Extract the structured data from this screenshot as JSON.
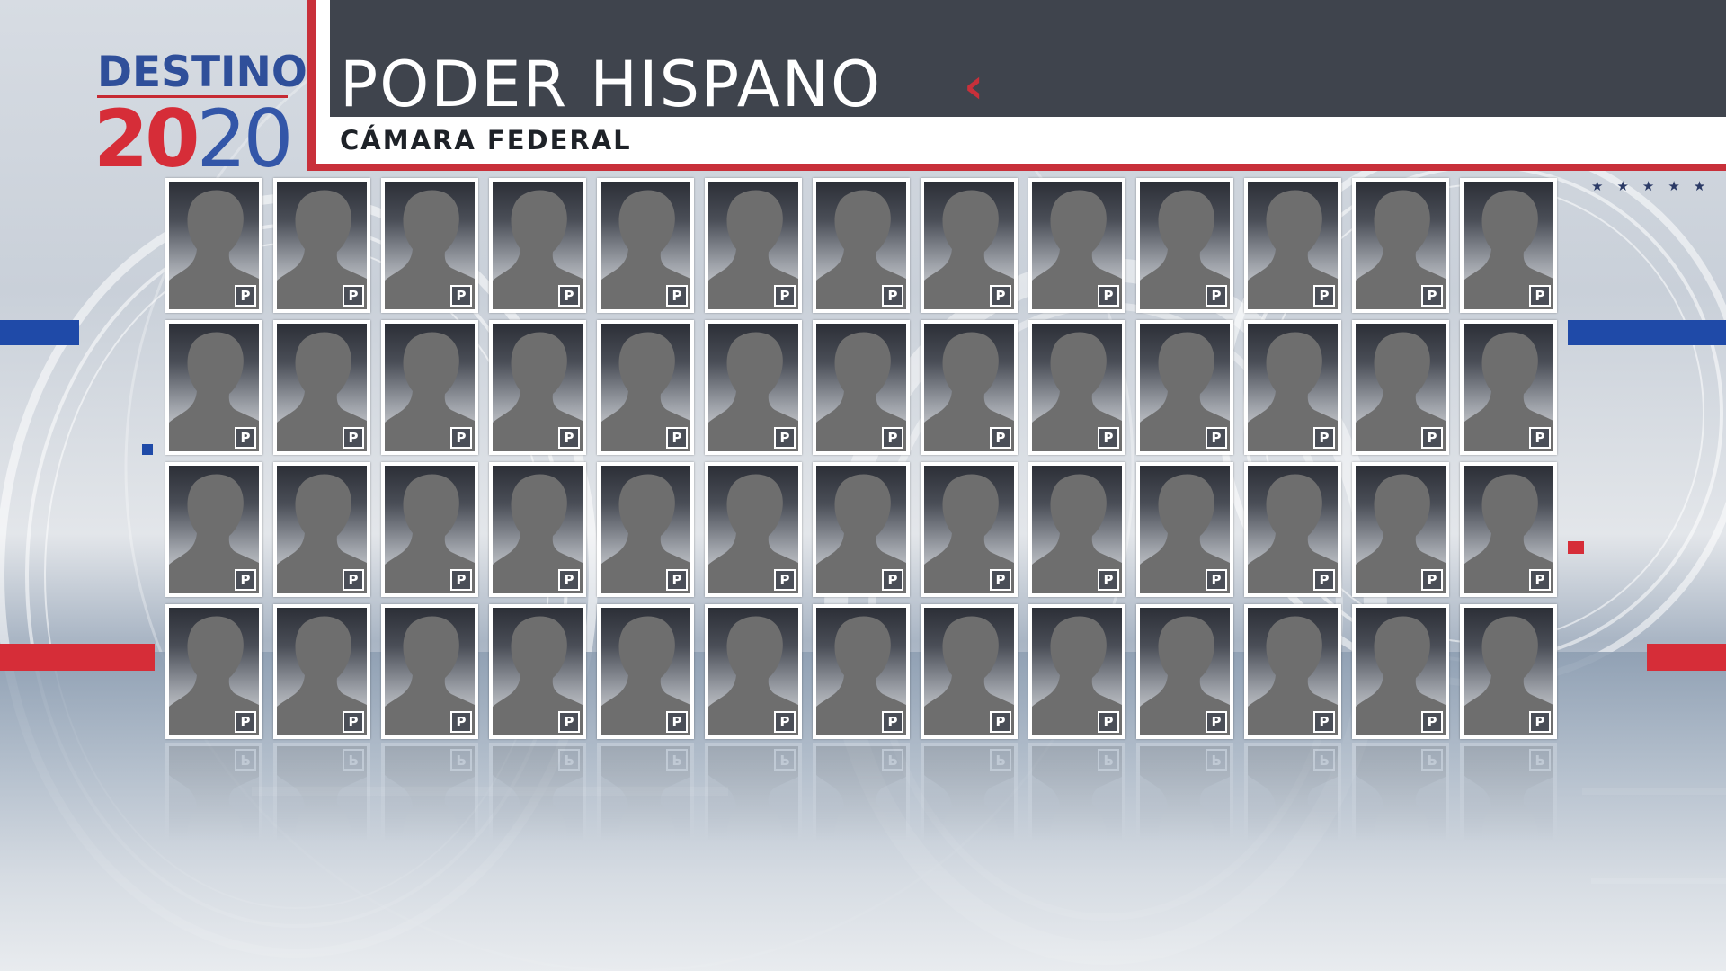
{
  "logo": {
    "top": "DESTINO",
    "year_red": "20",
    "year_blue": "20"
  },
  "header": {
    "title": "PODER HISPANO",
    "subtitle": "CÁMARA FEDERAL",
    "chevron_icon": "chevron-left-icon"
  },
  "decor": {
    "stars": "★★★★★"
  },
  "grid": {
    "rows": 4,
    "columns": 13,
    "party_label": "P",
    "silhouette_icon": "person-silhouette-icon"
  },
  "colors": {
    "accent_red": "#c8303a",
    "accent_blue": "#2f4f9a",
    "header_dark": "#3f444d"
  }
}
